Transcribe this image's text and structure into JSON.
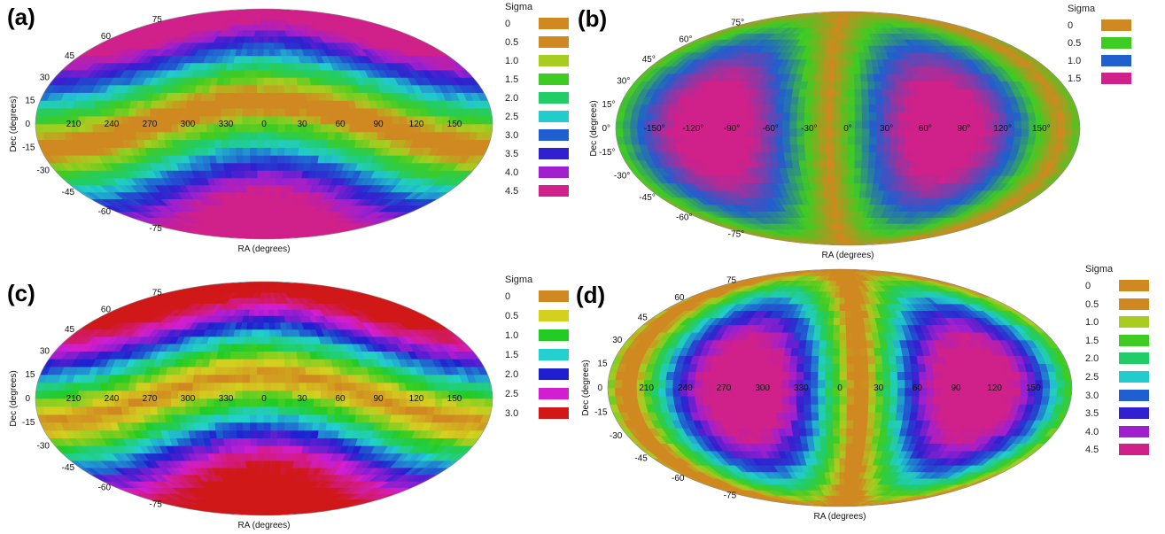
{
  "colors": {
    "0": "#d08820",
    "0.5": "#d4d020",
    "1.0": "#22cc22",
    "1.5": "#22d0d0",
    "2.0": "#1f1fcf",
    "2.5": "#d21ed2",
    "3.0": "#d01818",
    "seqA": [
      "#d08820",
      "#d08820",
      "#a9cc20",
      "#3fcc22",
      "#22cc66",
      "#22cccc",
      "#1f5fcf",
      "#3020cf",
      "#a020cf",
      "#d0208a"
    ]
  },
  "chart_data": [
    {
      "id": "a",
      "type": "heatmap",
      "projection": "mollweide",
      "panel_label": "(a)",
      "xlabel": "RA (degrees)",
      "ylabel": "Dec (degrees)",
      "ra_tick_labels": [
        "210",
        "240",
        "270",
        "300",
        "330",
        "0",
        "30",
        "60",
        "90",
        "120",
        "150"
      ],
      "dec_tick_labels": [
        "75",
        "60",
        "45",
        "30",
        "15",
        "0",
        "-15",
        "-30",
        "-45",
        "-60",
        "-75"
      ],
      "legend": {
        "title": "Sigma",
        "labels": [
          "0",
          "0.5",
          "1.0",
          "1.5",
          "2.0",
          "2.5",
          "3.0",
          "3.5",
          "4.0",
          "4.5"
        ],
        "colors": [
          "#d08820",
          "#d08820",
          "#a9cc20",
          "#3fcc22",
          "#22cc66",
          "#22cccc",
          "#1f5fcf",
          "#3020cf",
          "#a020cf",
          "#d0208a"
        ]
      },
      "minimum_sigma_great_circle": {
        "pole_ra": 0,
        "pole_dec": -75
      },
      "sigma_range": [
        0,
        4.5
      ]
    },
    {
      "id": "b",
      "type": "heatmap",
      "projection": "mollweide",
      "panel_label": "(b)",
      "xlabel": "RA (degrees)",
      "ylabel": "Dec (degrees)",
      "ra_tick_labels": [
        "-150°",
        "-120°",
        "-90°",
        "-60°",
        "-30°",
        "0°",
        "30°",
        "60°",
        "90°",
        "120°",
        "150°"
      ],
      "dec_tick_labels": [
        "75°",
        "60°",
        "45°",
        "30°",
        "15°",
        "0°",
        "-15°",
        "-30°",
        "-45°",
        "-60°",
        "-75°"
      ],
      "legend": {
        "title": "Sigma",
        "labels": [
          "0",
          "0.5",
          "1.0",
          "1.5"
        ],
        "colors": [
          "#d08820",
          "#3fcc22",
          "#1f5fcf",
          "#d0208a"
        ]
      },
      "minimum_sigma_great_circle": {
        "pole_ra": 75,
        "pole_dec": 0
      },
      "sigma_range": [
        0,
        1.5
      ]
    },
    {
      "id": "c",
      "type": "heatmap",
      "projection": "mollweide",
      "panel_label": "(c)",
      "xlabel": "RA (degrees)",
      "ylabel": "Dec (degrees)",
      "ra_tick_labels": [
        "210",
        "240",
        "270",
        "300",
        "330",
        "0",
        "30",
        "60",
        "90",
        "120",
        "150"
      ],
      "dec_tick_labels": [
        "75",
        "60",
        "45",
        "30",
        "15",
        "0",
        "-15",
        "-30",
        "-45",
        "-60",
        "-75"
      ],
      "legend": {
        "title": "Sigma",
        "labels": [
          "0",
          "0.5",
          "1.0",
          "1.5",
          "2.0",
          "2.5",
          "3.0"
        ],
        "colors": [
          "#d08820",
          "#d4d020",
          "#22cc22",
          "#22d0d0",
          "#1f1fcf",
          "#d21ed2",
          "#d01818"
        ]
      },
      "minimum_sigma_great_circle": {
        "pole_ra": 0,
        "pole_dec": -75
      },
      "sigma_range": [
        0,
        3.0
      ]
    },
    {
      "id": "d",
      "type": "heatmap",
      "projection": "mollweide",
      "panel_label": "(d)",
      "xlabel": "RA (degrees)",
      "ylabel": "Dec (degrees)",
      "ra_tick_labels": [
        "210",
        "240",
        "270",
        "300",
        "330",
        "0",
        "30",
        "60",
        "90",
        "120",
        "150"
      ],
      "dec_tick_labels": [
        "75",
        "60",
        "45",
        "30",
        "15",
        "0",
        "-15",
        "-30",
        "-45",
        "-60",
        "-75"
      ],
      "legend": {
        "title": "Sigma",
        "labels": [
          "0",
          "0.5",
          "1.0",
          "1.5",
          "2.0",
          "2.5",
          "3.0",
          "3.5",
          "4.0",
          "4.5"
        ],
        "colors": [
          "#d08820",
          "#d08820",
          "#a9cc20",
          "#3fcc22",
          "#22cc66",
          "#22cccc",
          "#1f5fcf",
          "#3020cf",
          "#a020cf",
          "#d0208a"
        ]
      },
      "minimum_sigma_great_circle": {
        "pole_ra": 75,
        "pole_dec": 0
      },
      "sigma_range": [
        0,
        4.5
      ]
    }
  ]
}
